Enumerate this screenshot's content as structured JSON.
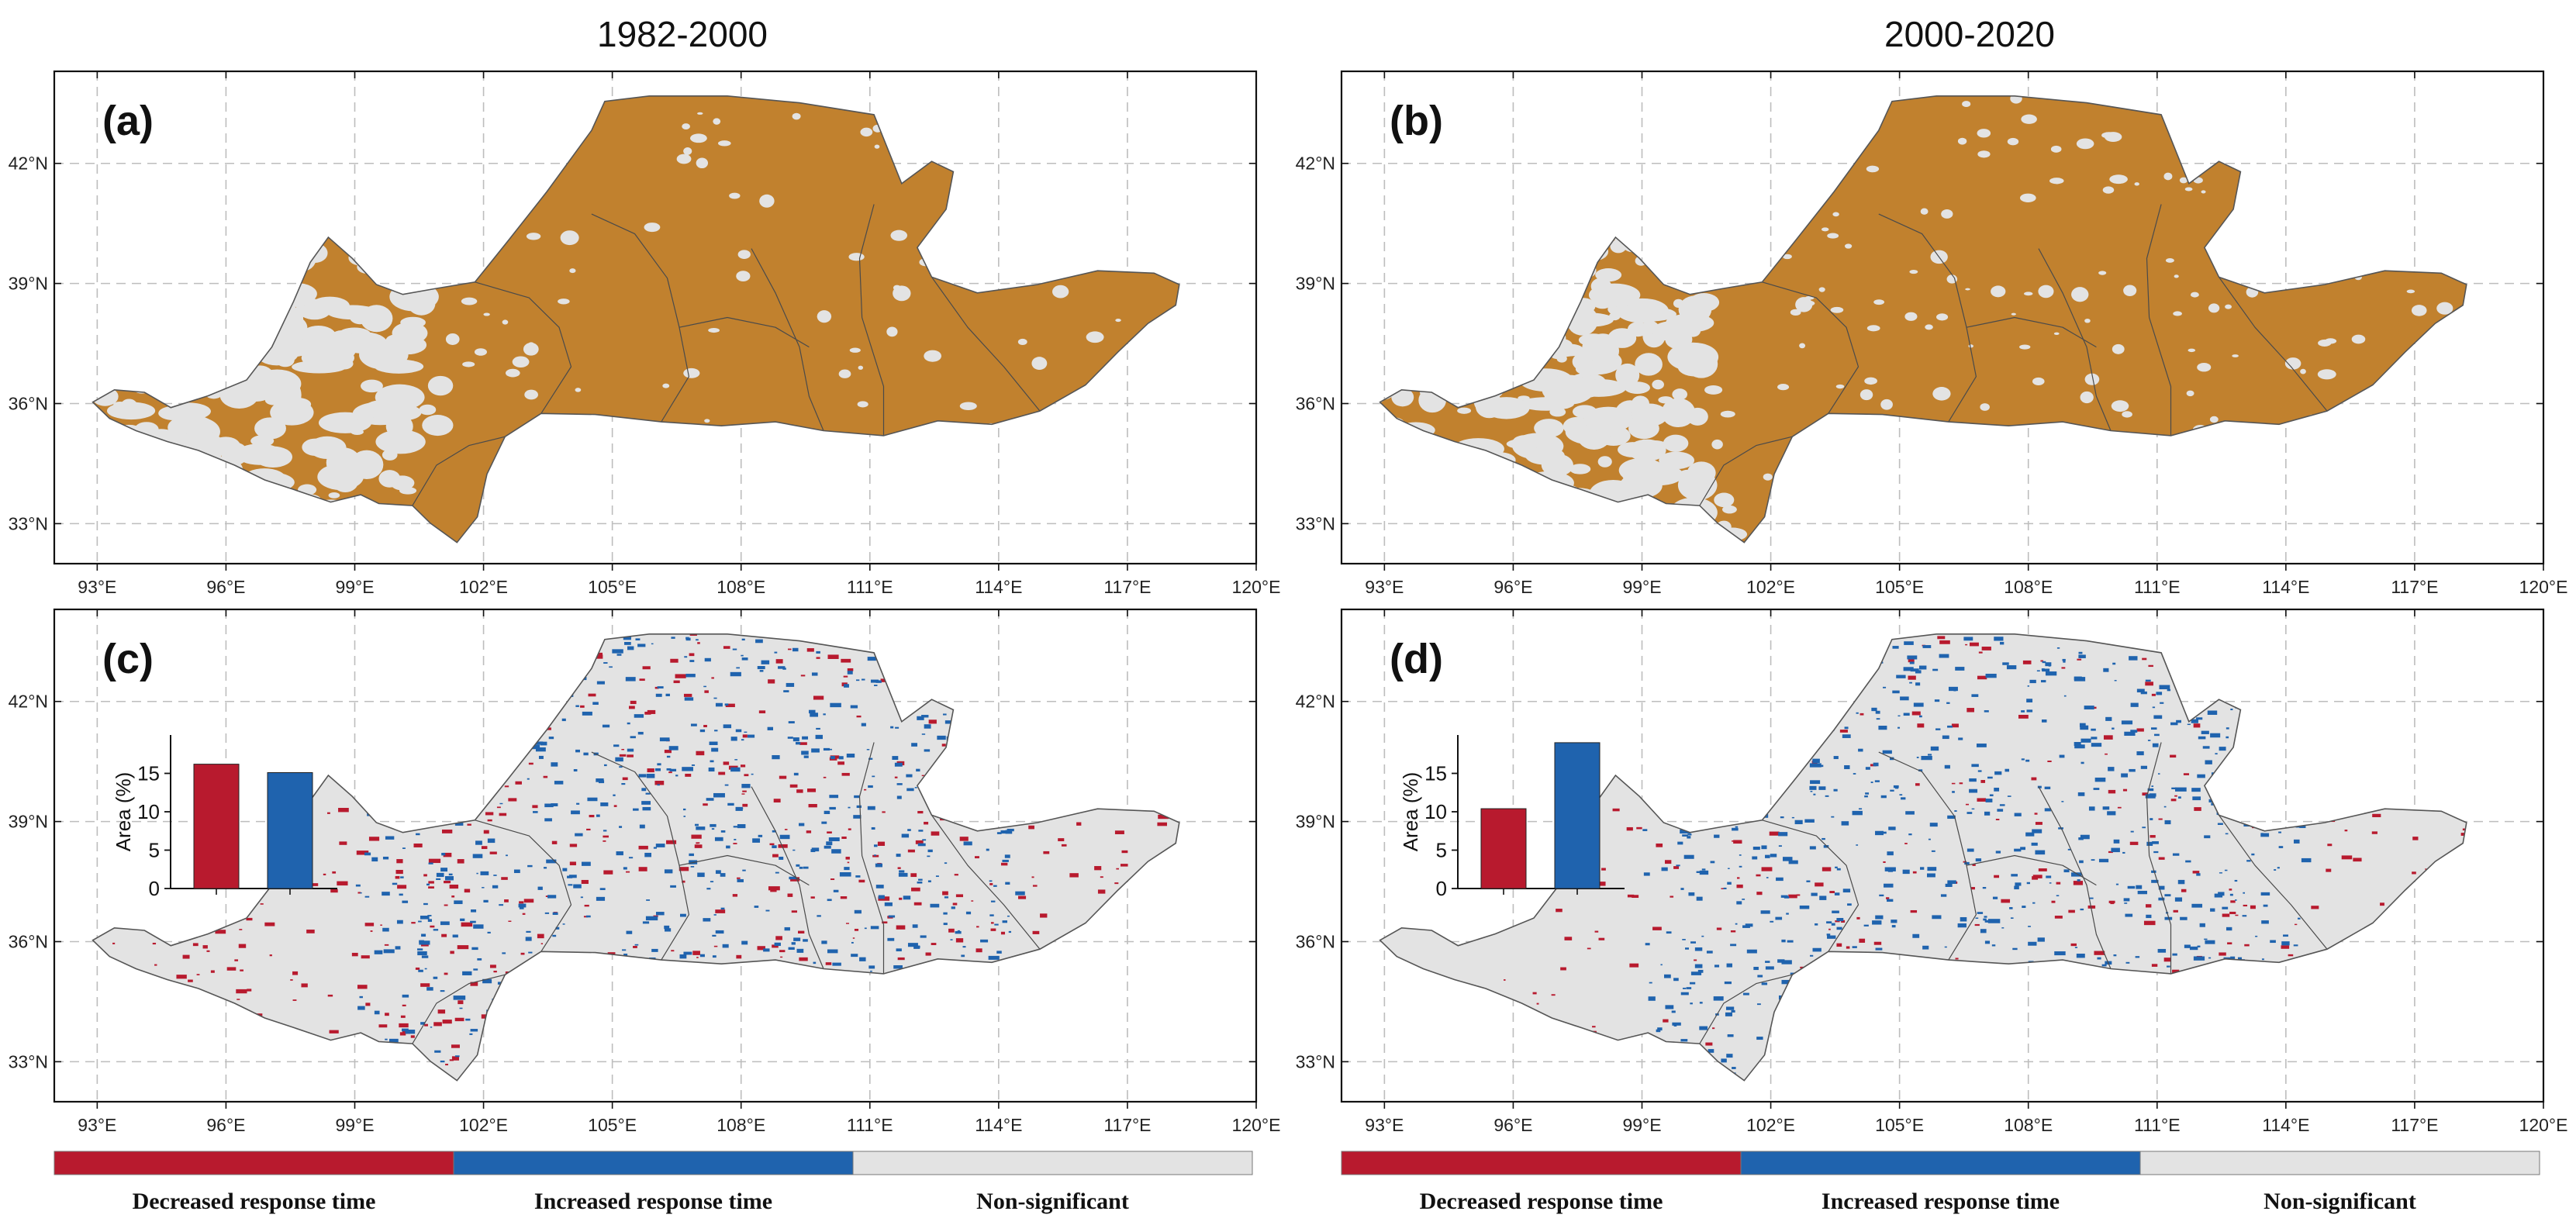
{
  "titles": {
    "left": "1982-2000",
    "right": "2000-2020"
  },
  "panels": [
    {
      "label": "(a)",
      "kind": "onset"
    },
    {
      "label": "(b)",
      "kind": "onset"
    },
    {
      "label": "(c)",
      "kind": "response",
      "inset": {
        "ylabel": "Area (%)",
        "yticks": [
          "0",
          "5",
          "10",
          "15"
        ],
        "ymax": 20,
        "decreased": 16.2,
        "increased": 15.1
      }
    },
    {
      "label": "(d)",
      "kind": "response",
      "inset": {
        "ylabel": "Area (%)",
        "yticks": [
          "0",
          "5",
          "10",
          "15"
        ],
        "ymax": 20,
        "decreased": 10.4,
        "increased": 19.0
      }
    }
  ],
  "axes": {
    "lon_ticks": [
      "93°E",
      "96°E",
      "99°E",
      "102°E",
      "105°E",
      "108°E",
      "111°E",
      "114°E",
      "117°E",
      "120°E"
    ],
    "lat_ticks": [
      "42°N",
      "39°N",
      "36°N",
      "33°N"
    ],
    "lon_range": [
      92,
      120
    ],
    "lat_range": [
      32,
      44.3
    ]
  },
  "legend": {
    "items": [
      {
        "label": "Decreased response time",
        "color": "#b81a2e"
      },
      {
        "label": "Increased response time",
        "color": "#1f63ae"
      },
      {
        "label": "Non-significant",
        "color": "#e3e3e3"
      }
    ]
  },
  "colors": {
    "onset_fill": "#c1812e",
    "basin_fill": "#e3e3e3",
    "decreased": "#b81a2e",
    "increased": "#1f63ae",
    "grid": "#bdbdbd",
    "boundary": "#555555"
  }
}
